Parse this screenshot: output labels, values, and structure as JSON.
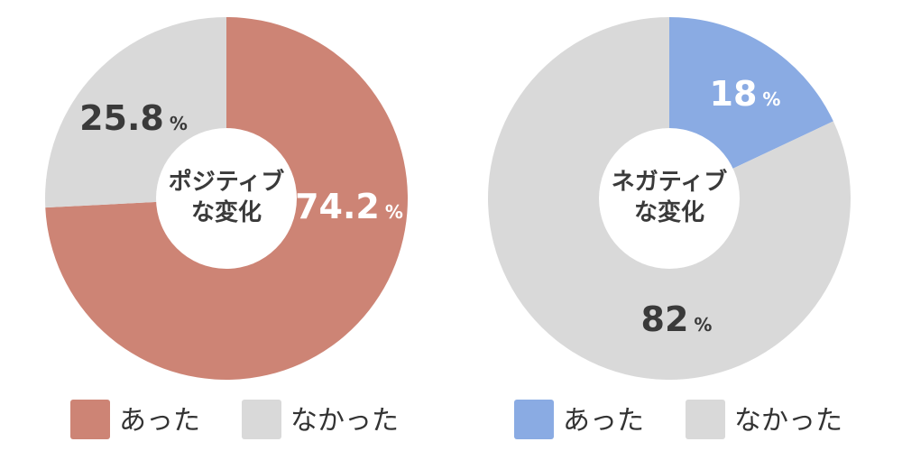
{
  "chart_data": [
    {
      "type": "pie",
      "center_label": [
        "ポジティブ",
        "な変化"
      ],
      "slices": [
        {
          "label": "あった",
          "value": 74.2,
          "display": "74.2",
          "unit": "%",
          "color": "#cd8475",
          "text_color": "#ffffff"
        },
        {
          "label": "なかった",
          "value": 25.8,
          "display": "25.8",
          "unit": "%",
          "color": "#d9d9d9",
          "text_color": "#3a3a3a"
        }
      ],
      "legend": [
        "あった",
        "なかった"
      ],
      "legend_placement": "bottom"
    },
    {
      "type": "pie",
      "center_label": [
        "ネガティブ",
        "な変化"
      ],
      "slices": [
        {
          "label": "あった",
          "value": 18,
          "display": "18",
          "unit": "%",
          "color": "#8aabe3",
          "text_color": "#ffffff"
        },
        {
          "label": "なかった",
          "value": 82,
          "display": "82",
          "unit": "%",
          "color": "#d9d9d9",
          "text_color": "#3a3a3a"
        }
      ],
      "legend": [
        "あった",
        "なかった"
      ],
      "legend_placement": "bottom"
    }
  ]
}
